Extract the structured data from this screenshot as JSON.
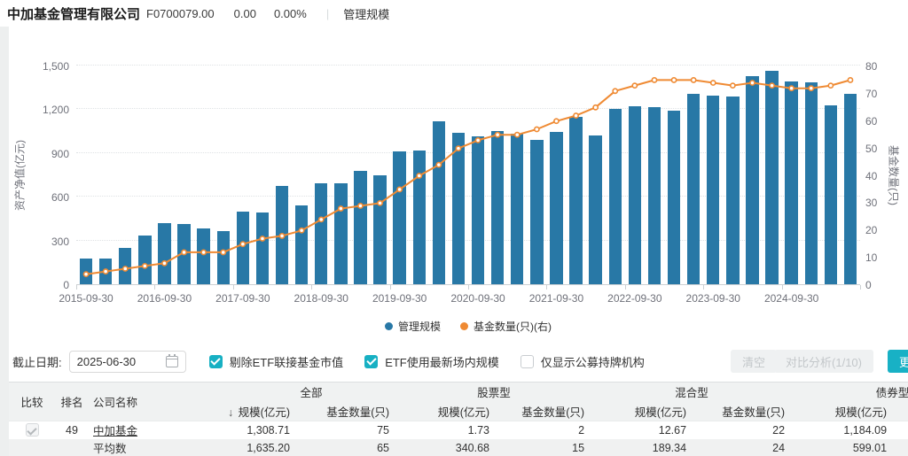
{
  "topbar": {
    "company": "中加基金管理有限公司",
    "code": "F0700079.00",
    "change": "0.00",
    "change_pct": "0.00%",
    "divider": "|",
    "tab": "管理规模"
  },
  "chart_data": {
    "type": "bar",
    "x": [
      "2015-09-30",
      "2015-12-31",
      "2016-03-31",
      "2016-06-30",
      "2016-09-30",
      "2016-12-31",
      "2017-03-31",
      "2017-06-30",
      "2017-09-30",
      "2017-12-31",
      "2018-03-31",
      "2018-06-30",
      "2018-09-30",
      "2018-12-31",
      "2019-03-31",
      "2019-06-30",
      "2019-09-30",
      "2019-12-31",
      "2020-03-31",
      "2020-06-30",
      "2020-09-30",
      "2020-12-31",
      "2021-03-31",
      "2021-06-30",
      "2021-09-30",
      "2021-12-31",
      "2022-03-31",
      "2022-06-30",
      "2022-09-30",
      "2022-12-31",
      "2023-03-31",
      "2023-06-30",
      "2023-09-30",
      "2023-12-31",
      "2024-03-31",
      "2024-06-30",
      "2024-09-30",
      "2024-12-31",
      "2025-03-31",
      "2025-06-30"
    ],
    "series": [
      {
        "name": "管理规模",
        "type": "bar",
        "y_axis": "left",
        "color": "#2878a6",
        "values": [
          175,
          178,
          252,
          335,
          420,
          412,
          385,
          362,
          497,
          492,
          675,
          542,
          690,
          695,
          779,
          750,
          910,
          920,
          1115,
          1040,
          1015,
          1050,
          1030,
          990,
          1045,
          1150,
          1020,
          1205,
          1222,
          1213,
          1192,
          1306,
          1296,
          1290,
          1430,
          1465,
          1390,
          1385,
          1225,
          1308.71
        ]
      },
      {
        "name": "基金数量(只)(右)",
        "type": "line",
        "y_axis": "right",
        "color": "#ef8a33",
        "values": [
          4,
          5,
          6,
          7,
          8,
          12,
          12,
          12,
          15,
          17,
          18,
          20,
          24,
          28,
          29,
          30,
          35,
          40,
          44,
          50,
          53,
          55,
          55,
          57,
          60,
          62,
          65,
          71,
          73,
          75,
          75,
          75,
          74,
          73,
          74,
          73,
          72,
          72,
          73,
          75
        ]
      }
    ],
    "left_axis": {
      "name": "资产净值(亿元)",
      "min": 0,
      "max": 1500,
      "step": 300,
      "tick_labels": [
        "0",
        "300",
        "600",
        "900",
        "1,200",
        "1,500"
      ]
    },
    "right_axis": {
      "name": "基金数量(只)",
      "min": 0,
      "max": 80,
      "step": 10,
      "tick_labels": [
        "0",
        "10",
        "20",
        "30",
        "40",
        "50",
        "60",
        "70",
        "80"
      ]
    },
    "x_tick_labels": [
      "2015-09-30",
      "2016-09-30",
      "2017-09-30",
      "2018-09-30",
      "2019-09-30",
      "2020-09-30",
      "2021-09-30",
      "2022-09-30",
      "2023-09-30",
      "2024-09-30"
    ],
    "legend": [
      {
        "label": "管理规模",
        "color": "#2878a6"
      },
      {
        "label": "基金数量(只)(右)",
        "color": "#ef8a33"
      }
    ],
    "grid": true,
    "legend_position": "bottom-center"
  },
  "filters": {
    "date_label": "截止日期:",
    "date_value": "2025-06-30",
    "checkboxes": [
      {
        "label": "剔除ETF联接基金市值",
        "checked": true
      },
      {
        "label": "ETF使用最新场内规模",
        "checked": true
      },
      {
        "label": "仅显示公募持牌机构",
        "checked": false
      }
    ],
    "clear_button": "清空",
    "compare_button": "对比分析(1/10)",
    "more_button": "更多"
  },
  "table": {
    "sort_icon": "↓",
    "fixed_headers": [
      "比较",
      "排名",
      "公司名称"
    ],
    "groups": [
      "全部",
      "股票型",
      "混合型",
      "债券型"
    ],
    "sub_headers": [
      {
        "label": "规模(亿元)",
        "sort": "desc"
      },
      {
        "label": "基金数量(只)"
      },
      {
        "label": "规模(亿元)"
      },
      {
        "label": "基金数量(只)"
      },
      {
        "label": "规模(亿元)"
      },
      {
        "label": "基金数量(只)"
      },
      {
        "label": "规模(亿元)"
      }
    ],
    "rows": [
      {
        "compare_checked": true,
        "rank": "49",
        "name": "中加基金",
        "link": true,
        "values": [
          "1,308.71",
          "75",
          "1.73",
          "2",
          "12.67",
          "22",
          "1,184.09"
        ]
      },
      {
        "compare_checked": null,
        "rank": "",
        "name": "平均数",
        "link": false,
        "is_average": true,
        "values": [
          "1,635.20",
          "65",
          "340.68",
          "15",
          "189.34",
          "24",
          "599.01"
        ]
      }
    ]
  },
  "colors": {
    "accent_teal": "#17b0c3",
    "bar_blue": "#2878a6",
    "line_orange": "#ef8a33"
  }
}
